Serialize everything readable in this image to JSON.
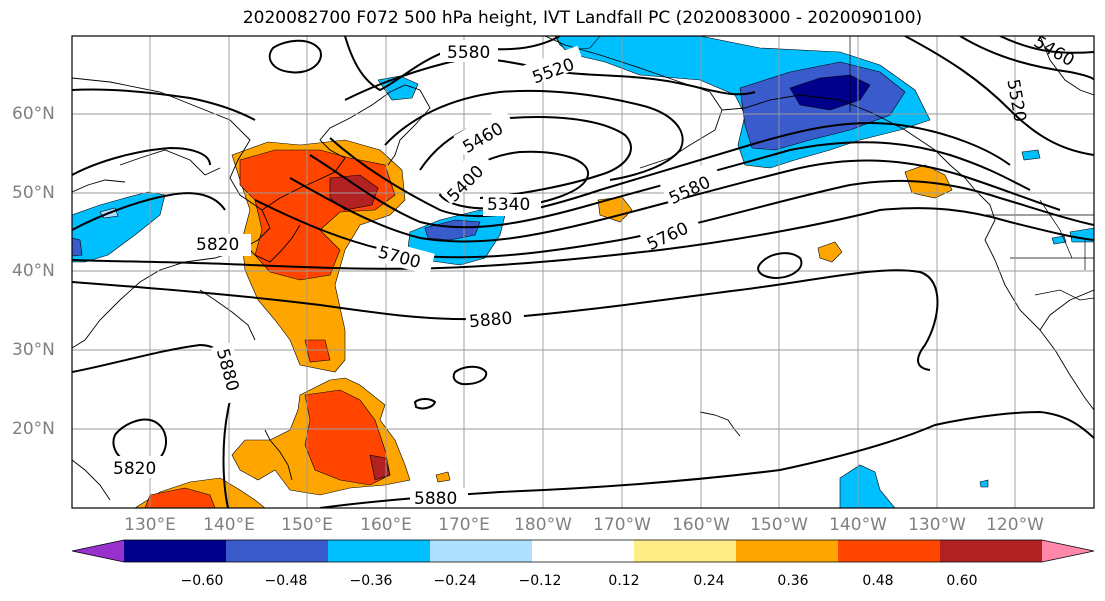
{
  "title": "2020082700 F072 500 hPa height, IVT Landfall PC (2020083000 - 2020090100)",
  "lat_labels": [
    "60°N",
    "50°N",
    "40°N",
    "30°N",
    "20°N"
  ],
  "lon_labels": [
    "130°E",
    "140°E",
    "150°E",
    "160°E",
    "170°E",
    "180°W",
    "170°W",
    "160°W",
    "150°W",
    "140°W",
    "130°W",
    "120°W"
  ],
  "contour_labels": [
    "5580",
    "5520",
    "5460",
    "5520",
    "5460",
    "5400",
    "5340",
    "5580",
    "5760",
    "5700",
    "5820",
    "5880",
    "5880",
    "5820",
    "5880"
  ],
  "colorbar": {
    "ticks": [
      "−0.60",
      "−0.48",
      "−0.36",
      "−0.24",
      "−0.12",
      "0.12",
      "0.24",
      "0.36",
      "0.48",
      "0.60"
    ],
    "colors": [
      "#9932cc",
      "#00008b",
      "#3a5bcc",
      "#00bfff",
      "#b0e0ff",
      "#ffffff",
      "#ffed85",
      "#ffa500",
      "#ff4500",
      "#b22222",
      "#ff88aa"
    ]
  }
}
